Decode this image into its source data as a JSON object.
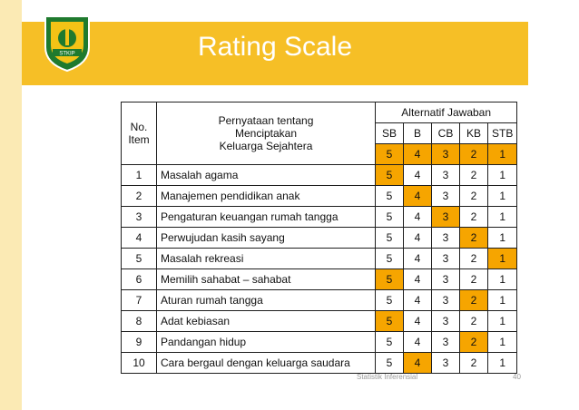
{
  "title": "Rating Scale",
  "logo": {
    "top_text": "SEKOLAH TINGGI KEGURUAN DAN ILMU PENDIDIKAN",
    "label": "STKIP",
    "sub": "TAMAN BANGSA"
  },
  "table": {
    "col_no": "No. Item",
    "col_statement": "Pernyataan tentang Menciptakan Keluarga Sejahtera",
    "col_answers": "Alternatif Jawaban",
    "scale_labels": [
      "SB",
      "B",
      "CB",
      "KB",
      "STB"
    ],
    "scale_values": [
      "5",
      "4",
      "3",
      "2",
      "1"
    ],
    "rows": [
      {
        "no": "1",
        "text": "Masalah agama",
        "vals": [
          "5",
          "4",
          "3",
          "2",
          "1"
        ],
        "selected": 0
      },
      {
        "no": "2",
        "text": "Manajemen pendidikan anak",
        "vals": [
          "5",
          "4",
          "3",
          "2",
          "1"
        ],
        "selected": 1
      },
      {
        "no": "3",
        "text": "Pengaturan keuangan rumah tangga",
        "vals": [
          "5",
          "4",
          "3",
          "2",
          "1"
        ],
        "selected": 2
      },
      {
        "no": "4",
        "text": "Perwujudan kasih sayang",
        "vals": [
          "5",
          "4",
          "3",
          "2",
          "1"
        ],
        "selected": 3
      },
      {
        "no": "5",
        "text": "Masalah rekreasi",
        "vals": [
          "5",
          "4",
          "3",
          "2",
          "1"
        ],
        "selected": 4
      },
      {
        "no": "6",
        "text": "Memilih sahabat – sahabat",
        "vals": [
          "5",
          "4",
          "3",
          "2",
          "1"
        ],
        "selected": 0
      },
      {
        "no": "7",
        "text": "Aturan rumah tangga",
        "vals": [
          "5",
          "4",
          "3",
          "2",
          "1"
        ],
        "selected": 3
      },
      {
        "no": "8",
        "text": "Adat kebiasan",
        "vals": [
          "5",
          "4",
          "3",
          "2",
          "1"
        ],
        "selected": 0
      },
      {
        "no": "9",
        "text": "Pandangan hidup",
        "vals": [
          "5",
          "4",
          "3",
          "2",
          "1"
        ],
        "selected": 3
      },
      {
        "no": "10",
        "text": "Cara bergaul dengan keluarga saudara",
        "vals": [
          "5",
          "4",
          "3",
          "2",
          "1"
        ],
        "selected": 1
      }
    ]
  },
  "footer": {
    "source": "Statistik Inferensial",
    "page": "40"
  },
  "colors": {
    "header": "#f6bf26",
    "highlight": "#f6a500",
    "strip": "#fbeab4"
  }
}
